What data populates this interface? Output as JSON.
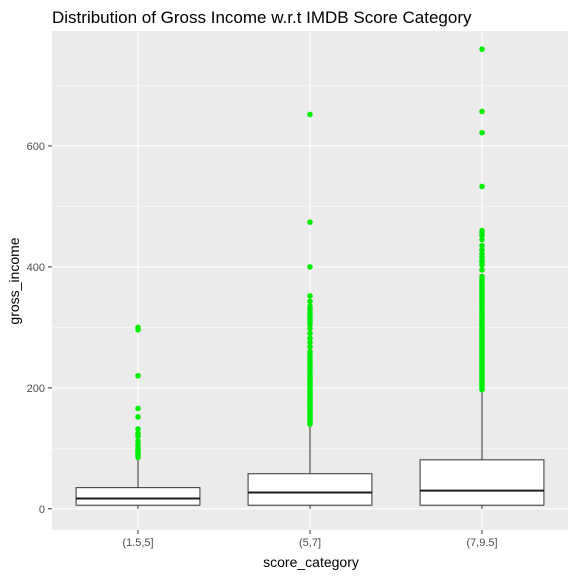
{
  "chart_data": {
    "type": "boxplot",
    "title": "Distribution of Gross Income w.r.t IMDB Score Category",
    "xlabel": "score_category",
    "ylabel": "gross_income",
    "categories": [
      "(1.5,5]",
      "(5,7]",
      "(7,9.5]"
    ],
    "ylim": [
      -35,
      790
    ],
    "yticks": [
      0,
      200,
      400,
      600
    ],
    "grid": true,
    "legend": "none",
    "colors": {
      "panel": "#ebebeb",
      "grid": "#ffffff",
      "outlier": "#00ee00",
      "box_fill": "#ffffff",
      "box_stroke": "#333333"
    },
    "boxes": [
      {
        "category": "(1.5,5]",
        "min": 0,
        "q1": 6,
        "median": 17,
        "q3": 35,
        "whisker_high": 82,
        "outliers": [
          85,
          88,
          92,
          96,
          100,
          106,
          112,
          120,
          125,
          132,
          152,
          166,
          220,
          296,
          300
        ]
      },
      {
        "category": "(5,7]",
        "min": 0,
        "q1": 6,
        "median": 27,
        "q3": 58,
        "whisker_high": 138,
        "outliers": [
          140,
          143,
          146,
          149,
          152,
          155,
          158,
          161,
          164,
          167,
          170,
          173,
          176,
          179,
          182,
          185,
          188,
          191,
          194,
          197,
          200,
          204,
          208,
          212,
          216,
          220,
          225,
          230,
          235,
          240,
          245,
          250,
          255,
          260,
          268,
          275,
          282,
          290,
          298,
          305,
          310,
          315,
          320,
          325,
          330,
          335,
          343,
          352,
          400,
          474,
          652
        ]
      },
      {
        "category": "(7,9.5]",
        "min": 0,
        "q1": 6,
        "median": 30,
        "q3": 81,
        "whisker_high": 195,
        "outliers": [
          197,
          200,
          203,
          206,
          209,
          212,
          215,
          218,
          221,
          224,
          227,
          230,
          233,
          236,
          239,
          242,
          245,
          248,
          251,
          254,
          257,
          260,
          263,
          266,
          269,
          272,
          275,
          278,
          281,
          284,
          287,
          290,
          293,
          296,
          300,
          304,
          308,
          312,
          316,
          320,
          324,
          328,
          332,
          336,
          340,
          344,
          348,
          352,
          356,
          360,
          364,
          368,
          372,
          376,
          380,
          384,
          395,
          403,
          407,
          410,
          416,
          422,
          428,
          435,
          445,
          452,
          456,
          460,
          533,
          622,
          657,
          760
        ]
      }
    ]
  }
}
